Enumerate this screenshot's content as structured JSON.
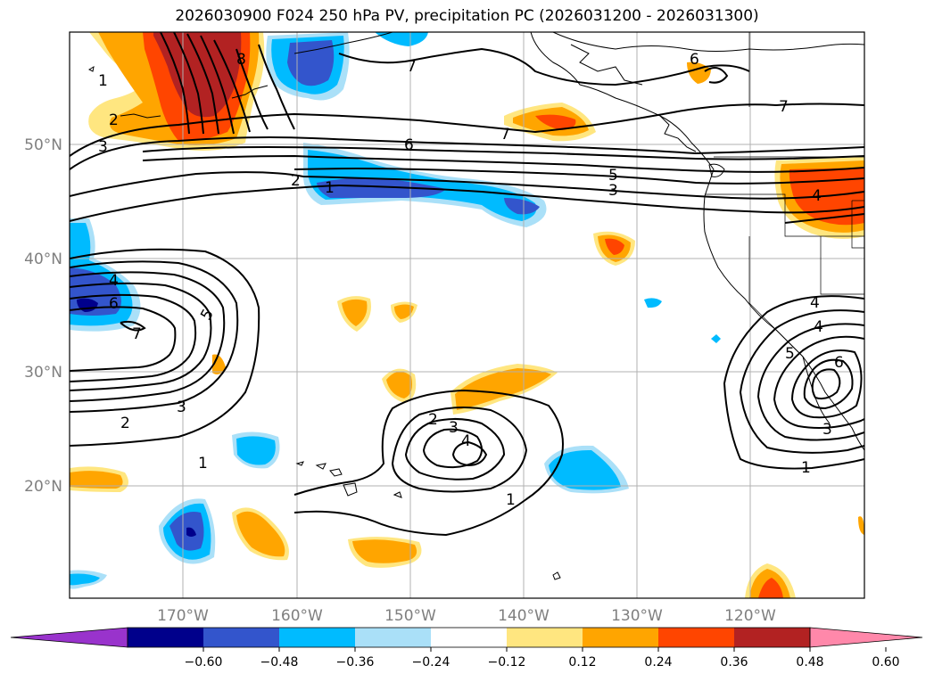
{
  "title": "2026030900 F024 250 hPa PV, precipitation PC (2026031200 - 2026031300)",
  "lat_labels": [
    "50°N",
    "40°N",
    "30°N",
    "20°N"
  ],
  "lon_labels": [
    "170°W",
    "160°W",
    "150°W",
    "140°W",
    "130°W",
    "120°W"
  ],
  "colorbar": {
    "tick_labels": [
      "−0.60",
      "−0.48",
      "−0.36",
      "−0.24",
      "−0.12",
      "0.12",
      "0.24",
      "0.36",
      "0.48",
      "0.60"
    ],
    "colors": [
      "#9933cc",
      "#00008b",
      "#3355cc",
      "#00bbff",
      "#aae0f8",
      "#ffffff",
      "#ffe680",
      "#ffa500",
      "#ff4500",
      "#b22222",
      "#ff88aa"
    ]
  },
  "pv_contour_labels": {
    "ridge_east": [
      "1",
      "2",
      "3",
      "4",
      "5",
      "6",
      "7"
    ],
    "jet": [
      "1",
      "2",
      "3",
      "5",
      "6",
      "7"
    ],
    "west": [
      "1",
      "2",
      "3",
      "4",
      "5",
      "6",
      "7"
    ],
    "cutoff_central": [
      "1",
      "2",
      "3",
      "4"
    ],
    "cutoff_east": [
      "1",
      "3",
      "4",
      "5",
      "6"
    ],
    "north": [
      "6",
      "7",
      "8"
    ]
  },
  "precip_colors": {
    "pos_light": "#ffe680",
    "pos_mid": "#ffa500",
    "pos_high": "#ff4500",
    "pos_max": "#b22222",
    "neg_light": "#aae0f8",
    "neg_mid": "#00bbff",
    "neg_high": "#3355cc",
    "neg_max": "#00008b"
  }
}
